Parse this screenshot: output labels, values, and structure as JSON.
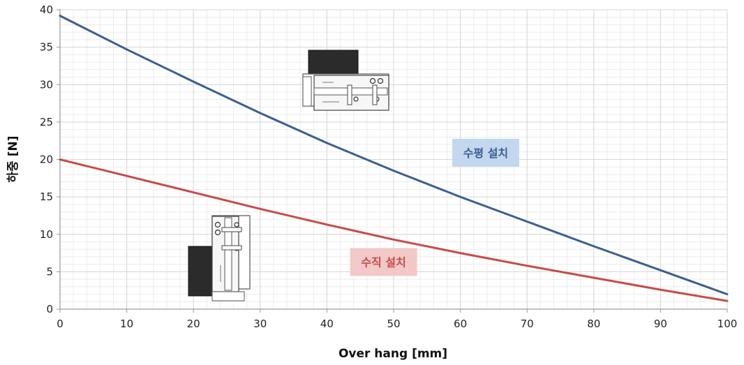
{
  "chart_data": {
    "type": "line",
    "title": "",
    "xlabel": "Over hang [mm]",
    "ylabel": "하중 [N]",
    "xlim": [
      0,
      100
    ],
    "ylim": [
      0,
      40
    ],
    "x_ticks": [
      0,
      10,
      20,
      30,
      40,
      50,
      60,
      70,
      80,
      90,
      100
    ],
    "y_ticks": [
      0,
      5,
      10,
      15,
      20,
      25,
      30,
      35,
      40
    ],
    "grid": true,
    "series": [
      {
        "name": "수평 설치",
        "color": "#3b5f91",
        "label_bg": "#c3d8ee",
        "x": [
          0,
          10,
          20,
          30,
          40,
          50,
          60,
          70,
          80,
          90,
          100
        ],
        "y": [
          39.2,
          34.7,
          30.4,
          26.2,
          22.2,
          18.5,
          15.0,
          11.7,
          8.4,
          5.2,
          2.0
        ]
      },
      {
        "name": "수직 설치",
        "color": "#c94a4a",
        "label_bg": "#f2c9c8",
        "x": [
          0,
          10,
          20,
          30,
          40,
          50,
          60,
          70,
          80,
          90,
          100
        ],
        "y": [
          20.0,
          17.8,
          15.6,
          13.4,
          11.3,
          9.3,
          7.5,
          5.8,
          4.2,
          2.6,
          1.1
        ]
      }
    ]
  }
}
